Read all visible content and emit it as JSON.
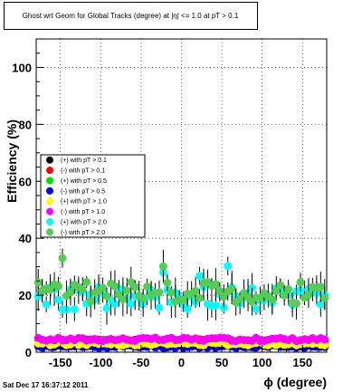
{
  "chart_data": {
    "type": "scatter",
    "title": "Ghost wrt Geom for Global Tracks (degree) at |η| <= 1.0 at pT > 0.1",
    "xlabel": "ϕ (degree)",
    "ylabel": "Efficiency (%)",
    "xlim": [
      -180,
      180
    ],
    "ylim": [
      0,
      110
    ],
    "x_ticks": [
      -150,
      -100,
      -50,
      0,
      50,
      100,
      150
    ],
    "y_ticks": [
      0,
      20,
      40,
      60,
      80,
      100
    ],
    "grid": true,
    "legend_position": "left-middle",
    "timestamp": "Sat Dec 17 16:37:12 2011",
    "series": [
      {
        "name": "(+) with pT > 0.1",
        "color": "#000000",
        "base": 2.5,
        "spread": 0.6,
        "err": 0.8,
        "seed": 3
      },
      {
        "name": "(-) with pT > 0.1",
        "color": "#ff0000",
        "base": 4.0,
        "spread": 0.5,
        "err": 0.8,
        "seed": 5
      },
      {
        "name": "(+) with pT > 0.5",
        "color": "#00dd00",
        "base": 3.8,
        "spread": 0.6,
        "err": 0.8,
        "seed": 7
      },
      {
        "name": "(-) with pT > 0.5",
        "color": "#0000ff",
        "base": 2.0,
        "spread": 0.5,
        "err": 0.8,
        "seed": 11
      },
      {
        "name": "(+) with pT > 1.0",
        "color": "#ffff00",
        "base": 3.0,
        "spread": 0.6,
        "err": 0.8,
        "seed": 13
      },
      {
        "name": "(-) with pT > 1.0",
        "color": "#ff00ff",
        "base": 4.5,
        "spread": 0.6,
        "err": 0.8,
        "seed": 17
      },
      {
        "name": "(+) with pT > 2.0",
        "color": "#00ffff",
        "base": 19.0,
        "spread": 4.0,
        "err": 4.0,
        "seed": 19
      },
      {
        "name": "(-) with pT > 2.0",
        "color": "#55cc55",
        "base": 21.0,
        "spread": 4.0,
        "err": 4.0,
        "seed": 23
      }
    ]
  }
}
